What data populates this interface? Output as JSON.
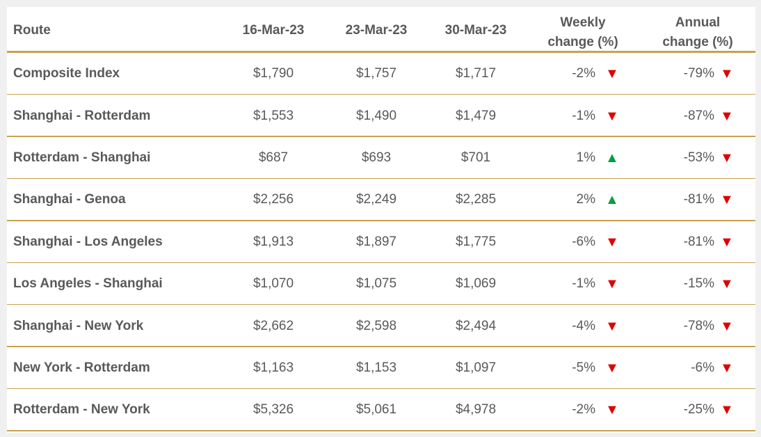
{
  "table": {
    "header": [
      "Route",
      "16-Mar-23",
      "23-Mar-23",
      "30-Mar-23",
      "Weekly change (%)",
      "Annual change (%)"
    ],
    "rows": [
      [
        "Composite Index",
        "$1,790",
        "$1,757",
        "$1,717",
        {
          "text": "-2%",
          "arrow": "▼",
          "arrow_color": "#e00000"
        },
        {
          "text": "-79%",
          "arrow": "▼",
          "arrow_color": "#e00000"
        }
      ],
      [
        "Shanghai - Rotterdam",
        "$1,553",
        "$1,490",
        "$1,479",
        {
          "text": "-1%",
          "arrow": "▼",
          "arrow_color": "#e00000"
        },
        {
          "text": "-87%",
          "arrow": "▼",
          "arrow_color": "#e00000"
        }
      ],
      [
        "Rotterdam - Shanghai",
        "$687",
        "$693",
        "$701",
        {
          "text": "1%",
          "arrow": "▲",
          "arrow_color": "#00a040"
        },
        {
          "text": "-53%",
          "arrow": "▼",
          "arrow_color": "#e00000"
        }
      ],
      [
        "Shanghai - Genoa",
        "$2,256",
        "$2,249",
        "$2,285",
        {
          "text": "2%",
          "arrow": "▲",
          "arrow_color": "#00a040"
        },
        {
          "text": "-81%",
          "arrow": "▼",
          "arrow_color": "#e00000"
        }
      ],
      [
        "Shanghai - Los Angeles",
        "$1,913",
        "$1,897",
        "$1,775",
        {
          "text": "-6%",
          "arrow": "▼",
          "arrow_color": "#e00000"
        },
        {
          "text": "-81%",
          "arrow": "▼",
          "arrow_color": "#e00000"
        }
      ],
      [
        "Los Angeles - Shanghai",
        "$1,070",
        "$1,075",
        "$1,069",
        {
          "text": "-1%",
          "arrow": "▼",
          "arrow_color": "#e00000"
        },
        {
          "text": "-15%",
          "arrow": "▼",
          "arrow_color": "#e00000"
        }
      ],
      [
        "Shanghai - New York",
        "$2,662",
        "$2,598",
        "$2,494",
        {
          "text": "-4%",
          "arrow": "▼",
          "arrow_color": "#e00000"
        },
        {
          "text": "-78%",
          "arrow": "▼",
          "arrow_color": "#e00000"
        }
      ],
      [
        "New York - Rotterdam",
        "$1,163",
        "$1,153",
        "$1,097",
        {
          "text": "-5%",
          "arrow": "▼",
          "arrow_color": "#e00000"
        },
        {
          "text": "-6%",
          "arrow": "▼",
          "arrow_color": "#e00000"
        }
      ],
      [
        "Rotterdam - New York",
        "$5,326",
        "$5,061",
        "$4,978",
        {
          "text": "-2%",
          "arrow": "▼",
          "arrow_color": "#e00000"
        },
        {
          "text": "-25%",
          "arrow": "▼",
          "arrow_color": "#e00000"
        }
      ]
    ]
  }
}
